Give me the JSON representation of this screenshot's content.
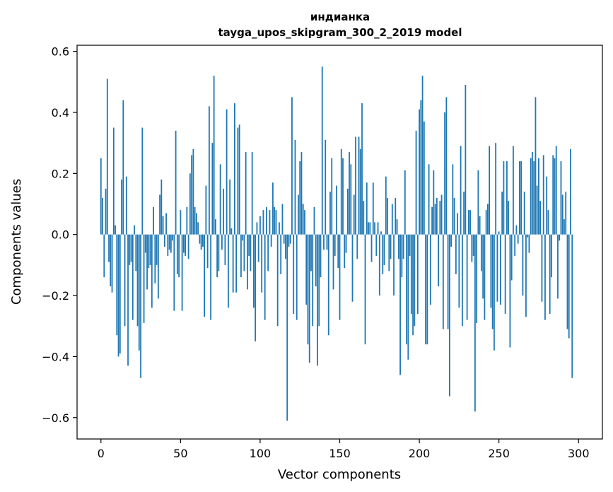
{
  "chart_data": {
    "type": "bar",
    "title": "индианка",
    "subtitle": "tayga_upos_skipgram_300_2_2019 model",
    "xlabel": "Vector components",
    "ylabel": "Components values",
    "xlim": [
      -15,
      315
    ],
    "ylim": [
      -0.67,
      0.62
    ],
    "xticks": [
      0,
      50,
      100,
      150,
      200,
      250,
      300
    ],
    "yticks": [
      -0.6,
      -0.4,
      -0.2,
      0.0,
      0.2,
      0.4,
      0.6
    ],
    "xtick_labels": [
      "0",
      "50",
      "100",
      "150",
      "200",
      "250",
      "300"
    ],
    "ytick_labels": [
      "−0.6",
      "−0.4",
      "−0.2",
      "0.0",
      "0.2",
      "0.4",
      "0.6"
    ],
    "grid": false,
    "bar_color": "#1f77b4",
    "values": [
      0.25,
      0.12,
      -0.14,
      0.15,
      0.51,
      -0.09,
      -0.17,
      -0.19,
      0.35,
      0.03,
      -0.33,
      -0.4,
      -0.39,
      0.18,
      0.44,
      -0.3,
      0.19,
      -0.43,
      -0.1,
      -0.09,
      -0.28,
      0.03,
      -0.12,
      -0.3,
      -0.38,
      -0.47,
      0.35,
      -0.29,
      -0.06,
      -0.18,
      -0.11,
      -0.1,
      -0.24,
      0.09,
      -0.16,
      -0.1,
      -0.21,
      0.13,
      0.18,
      0.06,
      -0.04,
      0.07,
      -0.07,
      -0.05,
      -0.06,
      -0.02,
      -0.25,
      0.34,
      -0.13,
      -0.14,
      0.08,
      -0.25,
      -0.06,
      -0.07,
      0.09,
      -0.08,
      0.2,
      0.26,
      0.28,
      0.09,
      0.07,
      0.04,
      -0.03,
      -0.05,
      -0.04,
      -0.27,
      0.16,
      -0.11,
      0.42,
      -0.28,
      0.3,
      0.52,
      0.05,
      -0.14,
      -0.12,
      0.23,
      -0.05,
      0.15,
      -0.1,
      0.41,
      -0.24,
      0.18,
      0.02,
      -0.19,
      0.43,
      -0.19,
      0.35,
      0.36,
      -0.14,
      -0.02,
      -0.12,
      0.27,
      -0.18,
      -0.07,
      -0.12,
      0.27,
      -0.24,
      -0.35,
      0.04,
      -0.09,
      0.06,
      -0.19,
      0.08,
      -0.28,
      0.09,
      -0.12,
      0.08,
      -0.04,
      0.17,
      0.09,
      0.08,
      -0.3,
      0.04,
      -0.13,
      0.1,
      -0.03,
      -0.08,
      -0.61,
      -0.04,
      -0.03,
      0.45,
      -0.26,
      0.31,
      -0.28,
      0.13,
      0.24,
      0.27,
      0.1,
      0.08,
      -0.23,
      -0.36,
      -0.42,
      -0.12,
      -0.3,
      0.09,
      -0.17,
      -0.43,
      -0.3,
      -0.14,
      0.55,
      -0.05,
      0.31,
      -0.05,
      -0.33,
      0.14,
      0.25,
      -0.18,
      -0.07,
      0.16,
      -0.11,
      -0.28,
      0.28,
      0.25,
      -0.11,
      -0.06,
      0.15,
      0.27,
      0.23,
      -0.22,
      0.13,
      0.32,
      -0.08,
      0.32,
      0.28,
      0.43,
      0.11,
      -0.36,
      0.17,
      0.04,
      0.04,
      -0.09,
      0.17,
      0.04,
      -0.07,
      0.04,
      -0.2,
      0.01,
      -0.13,
      -0.1,
      0.19,
      0.12,
      -0.12,
      -0.08,
      0.1,
      -0.2,
      0.12,
      0.05,
      -0.08,
      -0.46,
      -0.14,
      -0.08,
      0.21,
      -0.36,
      -0.41,
      -0.07,
      -0.26,
      -0.33,
      -0.3,
      0.34,
      -0.26,
      0.41,
      0.44,
      0.52,
      0.37,
      -0.36,
      -0.36,
      0.23,
      -0.23,
      0.09,
      0.21,
      0.1,
      0.12,
      -0.17,
      0.11,
      0.13,
      -0.31,
      0.4,
      0.45,
      -0.31,
      -0.53,
      -0.04,
      0.23,
      0.12,
      -0.13,
      0.07,
      -0.24,
      0.29,
      -0.3,
      0.14,
      0.49,
      -0.28,
      0.08,
      0.08,
      -0.09,
      -0.07,
      -0.58,
      -0.29,
      0.21,
      0.06,
      -0.12,
      -0.21,
      -0.28,
      0.08,
      0.1,
      0.29,
      -0.24,
      -0.31,
      -0.38,
      0.3,
      -0.22,
      0.01,
      -0.23,
      0.14,
      0.24,
      -0.26,
      0.24,
      0.11,
      -0.37,
      -0.15,
      0.29,
      -0.07,
      0.03,
      -0.03,
      0.24,
      0.24,
      -0.2,
      0.14,
      -0.27,
      -0.01,
      -0.06,
      0.25,
      0.27,
      0.24,
      0.45,
      0.16,
      0.25,
      0.11,
      -0.22,
      0.26,
      -0.28,
      0.19,
      0.08,
      -0.26,
      -0.14,
      0.26,
      0.25,
      0.29,
      -0.21,
      -0.02,
      0.24,
      0.13,
      0.05,
      0.14,
      -0.31,
      -0.34,
      0.28,
      -0.47
    ]
  }
}
